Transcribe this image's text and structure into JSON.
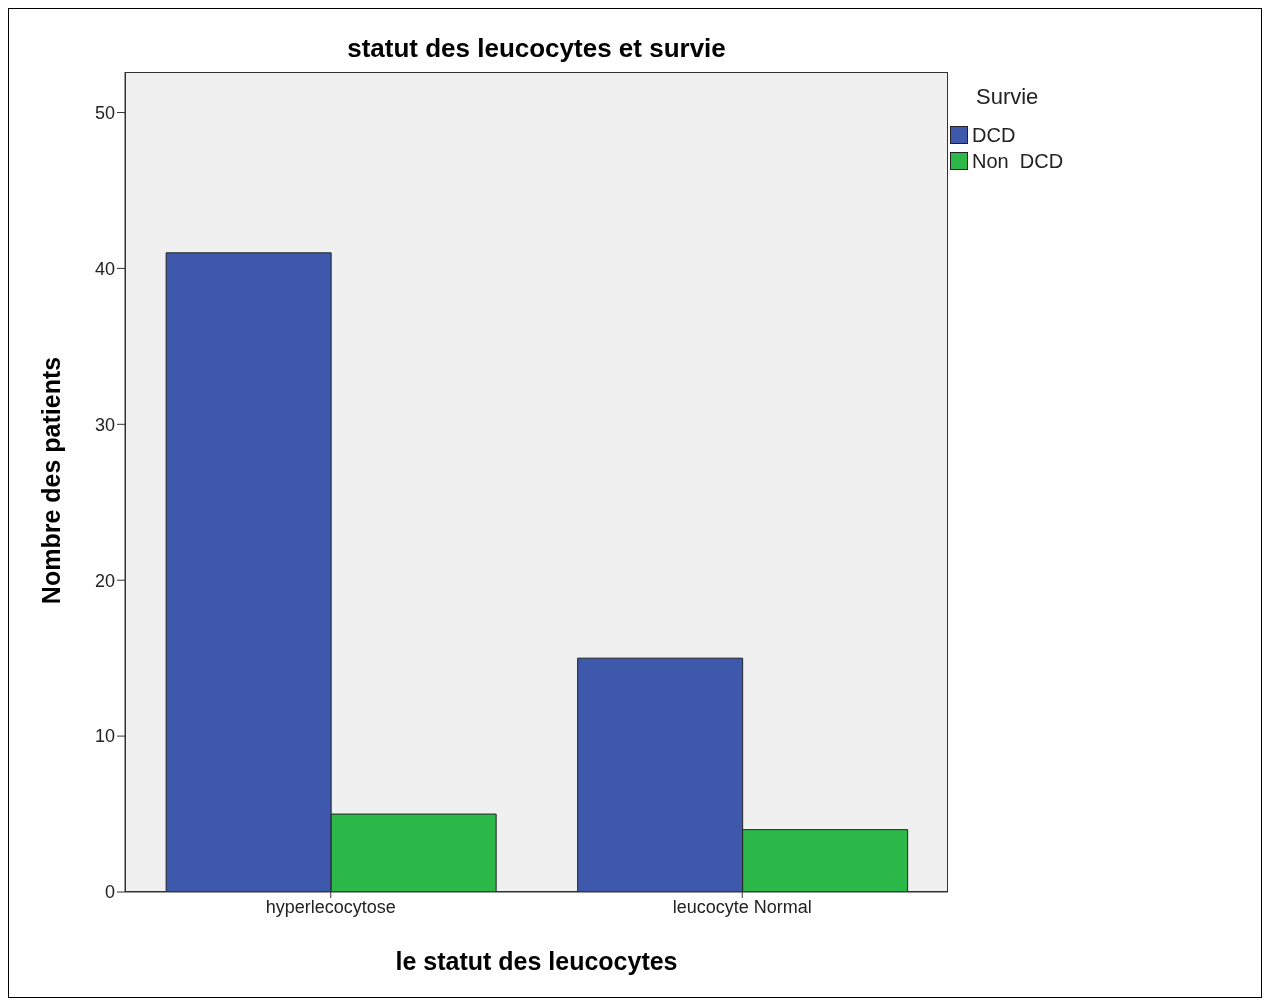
{
  "chart_data": {
    "type": "bar",
    "title": "statut des leucocytes et survie",
    "xlabel": "le statut des leucocytes",
    "ylabel": "Nombre des patients",
    "legend_title": "Survie",
    "categories": [
      "hyperlecocytose",
      "leucocyte Normal"
    ],
    "series": [
      {
        "name": "DCD",
        "color": "#3e58ac",
        "values": [
          41,
          15
        ]
      },
      {
        "name": "Non  DCD",
        "color": "#2db84a",
        "values": [
          5,
          4
        ]
      }
    ],
    "ylim": [
      0,
      52.6
    ],
    "yticks": [
      0,
      10,
      20,
      30,
      40,
      50
    ],
    "legend": "top right"
  }
}
